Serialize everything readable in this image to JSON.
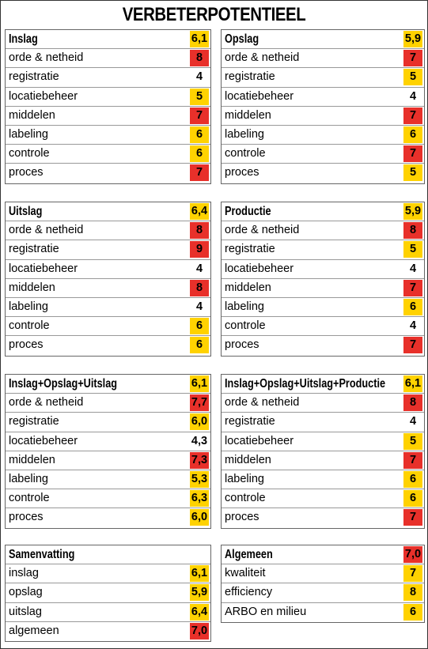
{
  "title": "VERBETERPOTENTIEEL",
  "colors": {
    "red": "#e8302a",
    "yellow": "#ffd200",
    "none": "transparent"
  },
  "panels": [
    {
      "title": "Inslag",
      "score": "6,1",
      "color": "yellow",
      "rows": [
        {
          "label": "orde & netheid",
          "value": "8",
          "color": "red"
        },
        {
          "label": "registratie",
          "value": "4",
          "color": "none"
        },
        {
          "label": "locatiebeheer",
          "value": "5",
          "color": "yellow"
        },
        {
          "label": "middelen",
          "value": "7",
          "color": "red"
        },
        {
          "label": "labeling",
          "value": "6",
          "color": "yellow"
        },
        {
          "label": "controle",
          "value": "6",
          "color": "yellow"
        },
        {
          "label": "proces",
          "value": "7",
          "color": "red"
        }
      ]
    },
    {
      "title": "Opslag",
      "score": "5,9",
      "color": "yellow",
      "rows": [
        {
          "label": "orde & netheid",
          "value": "7",
          "color": "red"
        },
        {
          "label": "registratie",
          "value": "5",
          "color": "yellow"
        },
        {
          "label": "locatiebeheer",
          "value": "4",
          "color": "none"
        },
        {
          "label": "middelen",
          "value": "7",
          "color": "red"
        },
        {
          "label": "labeling",
          "value": "6",
          "color": "yellow"
        },
        {
          "label": "controle",
          "value": "7",
          "color": "red"
        },
        {
          "label": "proces",
          "value": "5",
          "color": "yellow"
        }
      ]
    },
    {
      "title": "Uitslag",
      "score": "6,4",
      "color": "yellow",
      "rows": [
        {
          "label": "orde & netheid",
          "value": "8",
          "color": "red"
        },
        {
          "label": "registratie",
          "value": "9",
          "color": "red"
        },
        {
          "label": "locatiebeheer",
          "value": "4",
          "color": "none"
        },
        {
          "label": "middelen",
          "value": "8",
          "color": "red"
        },
        {
          "label": "labeling",
          "value": "4",
          "color": "none"
        },
        {
          "label": "controle",
          "value": "6",
          "color": "yellow"
        },
        {
          "label": "proces",
          "value": "6",
          "color": "yellow"
        }
      ]
    },
    {
      "title": "Productie",
      "score": "5,9",
      "color": "yellow",
      "rows": [
        {
          "label": "orde & netheid",
          "value": "8",
          "color": "red"
        },
        {
          "label": "registratie",
          "value": "5",
          "color": "yellow"
        },
        {
          "label": "locatiebeheer",
          "value": "4",
          "color": "none"
        },
        {
          "label": "middelen",
          "value": "7",
          "color": "red"
        },
        {
          "label": "labeling",
          "value": "6",
          "color": "yellow"
        },
        {
          "label": "controle",
          "value": "4",
          "color": "none"
        },
        {
          "label": "proces",
          "value": "7",
          "color": "red"
        }
      ]
    },
    {
      "title": "Inslag+Opslag+Uitslag",
      "score": "6,1",
      "color": "yellow",
      "rows": [
        {
          "label": "orde & netheid",
          "value": "7,7",
          "color": "red"
        },
        {
          "label": "registratie",
          "value": "6,0",
          "color": "yellow"
        },
        {
          "label": "locatiebeheer",
          "value": "4,3",
          "color": "none"
        },
        {
          "label": "middelen",
          "value": "7,3",
          "color": "red"
        },
        {
          "label": "labeling",
          "value": "5,3",
          "color": "yellow"
        },
        {
          "label": "controle",
          "value": "6,3",
          "color": "yellow"
        },
        {
          "label": "proces",
          "value": "6,0",
          "color": "yellow"
        }
      ]
    },
    {
      "title": "Inslag+Opslag+Uitslag+Productie",
      "score": "6,1",
      "color": "yellow",
      "rows": [
        {
          "label": "orde & netheid",
          "value": "8",
          "color": "red"
        },
        {
          "label": "registratie",
          "value": "4",
          "color": "none"
        },
        {
          "label": "locatiebeheer",
          "value": "5",
          "color": "yellow"
        },
        {
          "label": "middelen",
          "value": "7",
          "color": "red"
        },
        {
          "label": "labeling",
          "value": "6",
          "color": "yellow"
        },
        {
          "label": "controle",
          "value": "6",
          "color": "yellow"
        },
        {
          "label": "proces",
          "value": "7",
          "color": "red"
        }
      ]
    },
    {
      "title": "Samenvatting",
      "score": null,
      "color": "none",
      "rows": [
        {
          "label": "inslag",
          "value": "6,1",
          "color": "yellow"
        },
        {
          "label": "opslag",
          "value": "5,9",
          "color": "yellow"
        },
        {
          "label": "uitslag",
          "value": "6,4",
          "color": "yellow"
        },
        {
          "label": "algemeen",
          "value": "7,0",
          "color": "red"
        }
      ]
    },
    {
      "title": "Algemeen",
      "score": "7,0",
      "color": "red",
      "rows": [
        {
          "label": "kwaliteit",
          "value": "7",
          "color": "yellow"
        },
        {
          "label": "efficiency",
          "value": "8",
          "color": "yellow"
        },
        {
          "label": "ARBO en milieu",
          "value": "6",
          "color": "yellow"
        }
      ]
    }
  ]
}
